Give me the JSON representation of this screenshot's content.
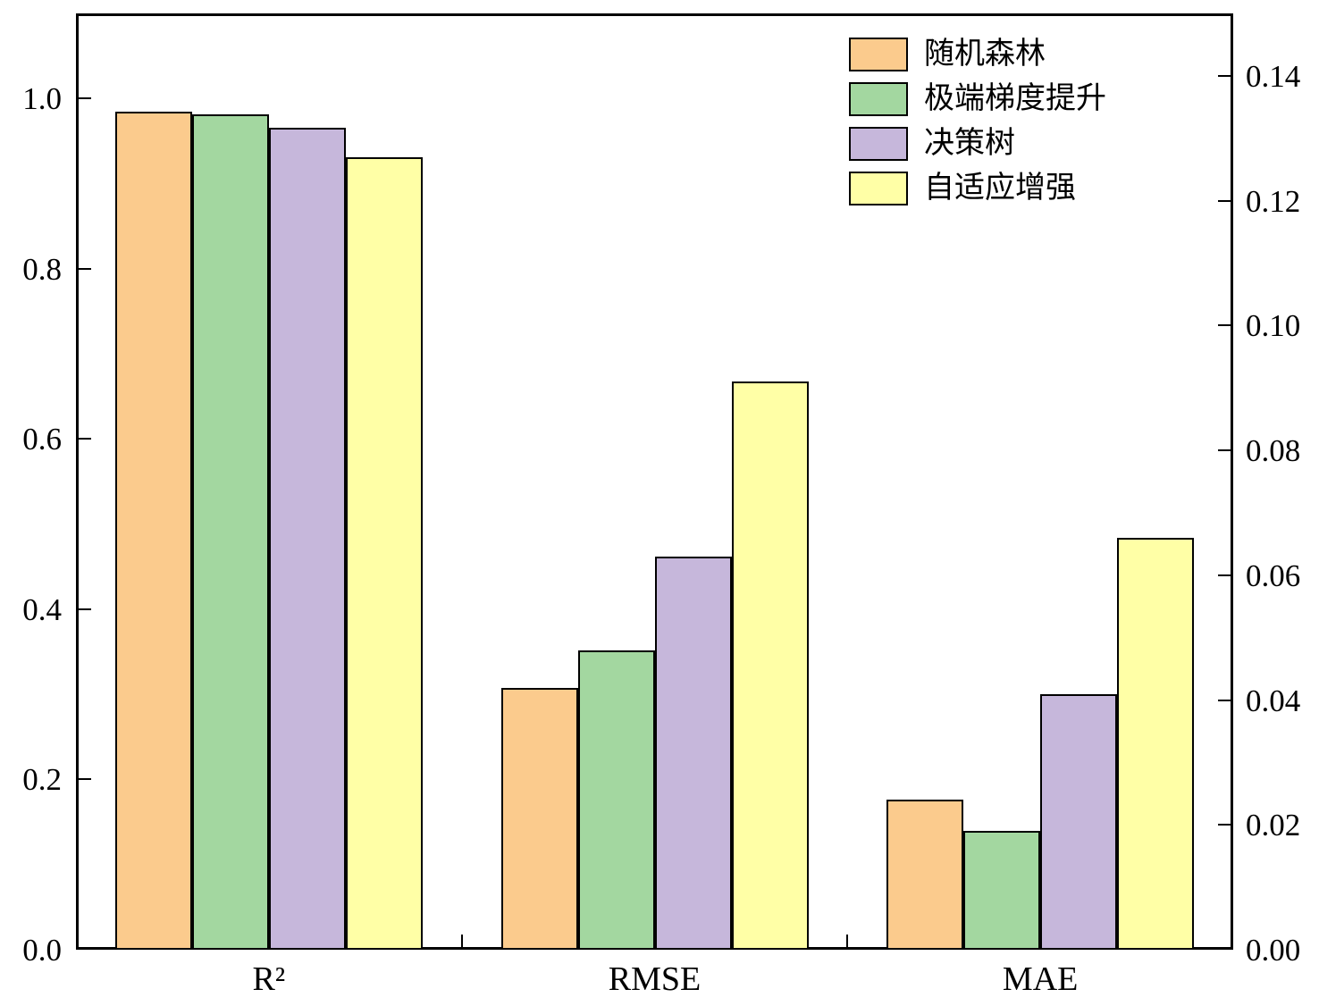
{
  "chart_data": {
    "type": "bar",
    "title": "",
    "categories": [
      "R²",
      "RMSE",
      "MAE"
    ],
    "axis_for_category": [
      "left",
      "right",
      "right"
    ],
    "series": [
      {
        "name": "随机森林",
        "color": "#FBCB8D",
        "values": [
          0.985,
          0.042,
          0.024
        ]
      },
      {
        "name": "极端梯度提升",
        "color": "#A3D7A0",
        "values": [
          0.981,
          0.048,
          0.019
        ]
      },
      {
        "name": "决策树",
        "color": "#C6B7DB",
        "values": [
          0.966,
          0.063,
          0.041
        ]
      },
      {
        "name": "自适应增强",
        "color": "#FFFFA6",
        "values": [
          0.931,
          0.091,
          0.066
        ]
      }
    ],
    "left_axis": {
      "tick_labels": [
        "0.0",
        "0.2",
        "0.4",
        "0.6",
        "0.8",
        "1.0"
      ],
      "tick_values": [
        0.0,
        0.2,
        0.4,
        0.6,
        0.8,
        1.0
      ],
      "range": [
        0,
        1.1
      ]
    },
    "right_axis": {
      "tick_labels": [
        "0.00",
        "0.02",
        "0.04",
        "0.06",
        "0.08",
        "0.10",
        "0.12",
        "0.14"
      ],
      "tick_values": [
        0.0,
        0.02,
        0.04,
        0.06,
        0.08,
        0.1,
        0.12,
        0.14
      ],
      "range": [
        0,
        0.15
      ]
    },
    "legend_position": "top-right",
    "grid": false,
    "bar_border_color": "#000000",
    "frame_color": "#000000"
  }
}
